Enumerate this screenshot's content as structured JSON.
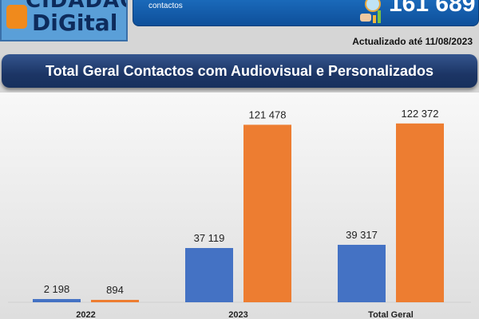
{
  "logo": {
    "line1": "CIDADÃO",
    "line2": "DiGital"
  },
  "banner": {
    "text": "contactos",
    "total": "161 689",
    "icon": "chart-magnifier-icon"
  },
  "updated": "Actualizado até 11/08/2023",
  "colors": {
    "blue": "#4472c4",
    "orange": "#ed7d31",
    "title_bg": "#1c3565"
  },
  "chart_data": {
    "type": "bar",
    "title": "Total Geral Contactos com Audiovisual e Personalizados",
    "categories": [
      "2022",
      "2023",
      "Total Geral"
    ],
    "series": [
      {
        "values": [
          2198,
          37119,
          39317
        ],
        "labels": [
          "2 198",
          "37 119",
          "39 317"
        ],
        "color": "#4472c4"
      },
      {
        "values": [
          894,
          121478,
          122372
        ],
        "labels": [
          "894",
          "121 478",
          "122 372"
        ],
        "color": "#ed7d31"
      }
    ],
    "ylim": [
      0,
      131000
    ],
    "grid": false,
    "legend": "none"
  }
}
